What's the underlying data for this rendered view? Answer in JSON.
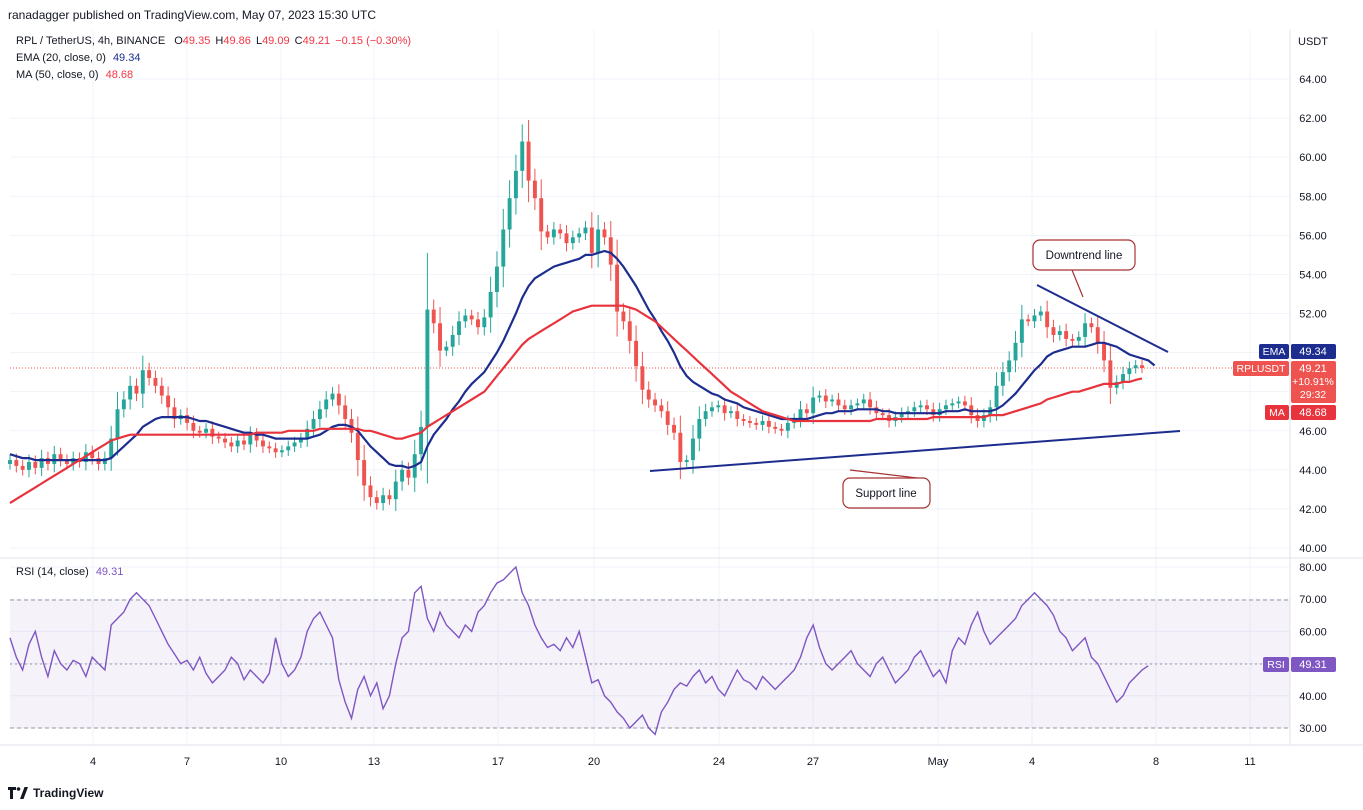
{
  "header": {
    "published": "ranadagger published on TradingView.com, May 07, 2023 15:30 UTC"
  },
  "legend": {
    "symbol": "RPL / TetherUS, 4h, BINANCE",
    "o_label": "O",
    "o": "49.35",
    "h_label": "H",
    "h": "49.86",
    "l_label": "L",
    "l": "49.09",
    "c_label": "C",
    "c": "49.21",
    "change": "−0.15 (−0.30%)",
    "ema_label": "EMA (20, close, 0)",
    "ema_value": "49.34",
    "ma_label": "MA (50, close, 0)",
    "ma_value": "48.68",
    "rsi_label": "RSI (14, close)",
    "rsi_value": "49.31"
  },
  "price_axis": {
    "currency": "USDT",
    "ticks": [
      "64.00",
      "62.00",
      "60.00",
      "58.00",
      "56.00",
      "54.00",
      "52.00",
      "50.00",
      "48.00",
      "46.00",
      "44.00",
      "42.00",
      "40.00"
    ]
  },
  "rsi_axis": {
    "ticks": [
      "80.00",
      "70.00",
      "60.00",
      "50.00",
      "40.00",
      "30.00"
    ]
  },
  "time_axis": {
    "ticks": [
      "4",
      "7",
      "10",
      "13",
      "17",
      "20",
      "24",
      "27",
      "May",
      "4",
      "8",
      "11"
    ]
  },
  "badges": {
    "ema_tag": "EMA",
    "ema_value": "49.34",
    "price_tag": "RPLUSDT",
    "price_value": "49.21",
    "price_change": "+10.91%",
    "countdown": "29:32",
    "ma_tag": "MA",
    "ma_value": "48.68",
    "rsi_tag": "RSI",
    "rsi_value": "49.31"
  },
  "annotations": {
    "downtrend": "Downtrend line",
    "support": "Support line"
  },
  "colors": {
    "up": "#26a69a",
    "down": "#ef5350",
    "ema": "#1c2d8f",
    "ma": "#e8333d",
    "rsi": "#7e57c2",
    "trendline": "#1c2d8f"
  },
  "footer": {
    "brand": "TradingView"
  },
  "chart_data": {
    "type": "candlestick",
    "symbol": "RPL / TetherUS",
    "interval": "4h",
    "ylim": [
      39.5,
      65.5
    ],
    "rsi_ylim": [
      25,
      82
    ],
    "closes": [
      44.5,
      44.2,
      44.0,
      44.4,
      44.1,
      44.6,
      44.3,
      44.8,
      44.5,
      44.3,
      44.6,
      44.4,
      44.9,
      44.6,
      44.3,
      44.6,
      45.6,
      47.1,
      47.6,
      48.3,
      47.9,
      49.1,
      48.7,
      48.3,
      47.8,
      47.2,
      46.6,
      46.8,
      46.4,
      46.0,
      45.9,
      46.1,
      45.7,
      45.6,
      45.4,
      45.2,
      45.5,
      45.3,
      45.8,
      45.5,
      45.2,
      45.1,
      44.9,
      45.0,
      45.2,
      45.4,
      45.6,
      46.1,
      46.6,
      47.1,
      47.6,
      47.9,
      47.3,
      46.6,
      45.9,
      44.5,
      43.2,
      42.6,
      42.3,
      42.7,
      42.5,
      43.4,
      44.0,
      43.6,
      44.8,
      46.2,
      52.2,
      51.5,
      50.1,
      50.3,
      50.9,
      51.6,
      51.9,
      51.7,
      51.3,
      51.8,
      53.1,
      54.4,
      56.3,
      57.9,
      59.3,
      60.8,
      58.8,
      57.9,
      56.2,
      55.9,
      56.3,
      56.1,
      55.6,
      55.9,
      56.1,
      56.4,
      55.1,
      56.3,
      55.9,
      54.5,
      52.1,
      51.6,
      50.6,
      49.3,
      48.1,
      47.6,
      47.3,
      47.0,
      46.3,
      45.9,
      44.4,
      44.5,
      45.6,
      46.6,
      47.0,
      47.2,
      47.3,
      46.9,
      47.0,
      46.6,
      46.5,
      46.4,
      46.3,
      46.5,
      46.2,
      46.1,
      46.0,
      46.4,
      46.6,
      47.1,
      46.9,
      47.7,
      47.8,
      47.5,
      47.6,
      47.3,
      47.1,
      47.3,
      47.4,
      47.6,
      47.2,
      46.9,
      46.8,
      46.5,
      46.7,
      46.9,
      47.0,
      47.2,
      47.3,
      47.1,
      46.8,
      47.1,
      47.3,
      47.4,
      47.5,
      47.3,
      46.8,
      46.5,
      46.8,
      47.2,
      48.3,
      49.0,
      49.6,
      50.5,
      51.7,
      51.6,
      51.9,
      52.1,
      51.3,
      50.9,
      51.1,
      50.7,
      50.6,
      50.8,
      51.5,
      51.3,
      50.5,
      49.6,
      48.2,
      48.5,
      48.9,
      49.2,
      49.35,
      49.21
    ],
    "ema20": [
      44.8,
      44.7,
      44.6,
      44.6,
      44.5,
      44.5,
      44.5,
      44.5,
      44.5,
      44.5,
      44.5,
      44.5,
      44.5,
      44.5,
      44.5,
      44.5,
      44.6,
      44.9,
      45.2,
      45.5,
      45.8,
      46.2,
      46.4,
      46.6,
      46.7,
      46.7,
      46.7,
      46.7,
      46.7,
      46.6,
      46.5,
      46.5,
      46.4,
      46.3,
      46.2,
      46.1,
      46.0,
      45.9,
      45.9,
      45.8,
      45.8,
      45.7,
      45.6,
      45.6,
      45.6,
      45.6,
      45.6,
      45.6,
      45.7,
      45.8,
      46.0,
      46.2,
      46.3,
      46.3,
      46.2,
      46.0,
      45.6,
      45.2,
      44.9,
      44.6,
      44.3,
      44.2,
      44.2,
      44.1,
      44.2,
      44.4,
      45.2,
      45.8,
      46.2,
      46.6,
      47.1,
      47.5,
      48.0,
      48.4,
      48.7,
      49.0,
      49.5,
      50.0,
      50.6,
      51.3,
      52.0,
      52.8,
      53.4,
      53.8,
      54.0,
      54.2,
      54.4,
      54.5,
      54.6,
      54.7,
      54.8,
      55.0,
      55.0,
      55.1,
      55.2,
      55.1,
      54.8,
      54.4,
      53.9,
      53.4,
      52.8,
      52.2,
      51.7,
      51.1,
      50.6,
      50.0,
      49.3,
      48.8,
      48.5,
      48.3,
      48.1,
      47.9,
      47.8,
      47.6,
      47.5,
      47.4,
      47.2,
      47.1,
      47.0,
      46.9,
      46.8,
      46.7,
      46.6,
      46.6,
      46.6,
      46.6,
      46.6,
      46.7,
      46.8,
      46.9,
      46.9,
      47.0,
      47.0,
      47.0,
      47.1,
      47.1,
      47.1,
      47.1,
      47.0,
      47.0,
      46.9,
      46.9,
      46.9,
      46.9,
      46.9,
      46.9,
      46.9,
      46.9,
      47.0,
      47.0,
      47.0,
      47.1,
      47.0,
      47.0,
      47.0,
      47.0,
      47.1,
      47.3,
      47.6,
      47.9,
      48.3,
      48.7,
      49.1,
      49.4,
      49.8,
      50.0,
      50.1,
      50.2,
      50.3,
      50.3,
      50.3,
      50.4,
      50.5,
      50.5,
      50.4,
      50.3,
      50.1,
      49.9,
      49.8,
      49.7,
      49.6,
      49.34
    ],
    "ma50": [
      42.3,
      42.5,
      42.7,
      42.9,
      43.1,
      43.3,
      43.5,
      43.7,
      43.9,
      44.1,
      44.3,
      44.5,
      44.7,
      44.9,
      45.1,
      45.3,
      45.5,
      45.6,
      45.7,
      45.8,
      45.8,
      45.8,
      45.8,
      45.8,
      45.8,
      45.8,
      45.8,
      45.8,
      45.8,
      45.8,
      45.8,
      45.8,
      45.8,
      45.8,
      45.8,
      45.8,
      45.8,
      45.8,
      45.8,
      45.9,
      45.9,
      45.9,
      45.9,
      45.9,
      46.0,
      46.0,
      46.0,
      46.0,
      46.0,
      46.1,
      46.1,
      46.1,
      46.1,
      46.1,
      46.1,
      46.1,
      46.0,
      46.0,
      45.9,
      45.8,
      45.7,
      45.6,
      45.6,
      45.7,
      45.8,
      45.9,
      46.2,
      46.4,
      46.6,
      46.8,
      47.0,
      47.2,
      47.4,
      47.6,
      47.8,
      48.0,
      48.4,
      48.8,
      49.2,
      49.6,
      50.0,
      50.4,
      50.7,
      50.9,
      51.1,
      51.3,
      51.5,
      51.7,
      51.9,
      52.1,
      52.2,
      52.3,
      52.4,
      52.4,
      52.4,
      52.4,
      52.4,
      52.4,
      52.3,
      52.2,
      52.0,
      51.8,
      51.6,
      51.3,
      51.0,
      50.7,
      50.4,
      50.1,
      49.8,
      49.5,
      49.2,
      48.9,
      48.6,
      48.3,
      48.0,
      47.8,
      47.6,
      47.4,
      47.2,
      47.0,
      46.9,
      46.8,
      46.7,
      46.6,
      46.5,
      46.5,
      46.5,
      46.5,
      46.5,
      46.5,
      46.5,
      46.5,
      46.5,
      46.5,
      46.5,
      46.5,
      46.5,
      46.6,
      46.6,
      46.6,
      46.6,
      46.6,
      46.6,
      46.6,
      46.6,
      46.6,
      46.7,
      46.7,
      46.7,
      46.7,
      46.7,
      46.7,
      46.7,
      46.7,
      46.7,
      46.8,
      46.8,
      46.8,
      46.9,
      47.0,
      47.1,
      47.2,
      47.3,
      47.4,
      47.6,
      47.7,
      47.8,
      47.9,
      48.0,
      48.0,
      48.1,
      48.2,
      48.3,
      48.4,
      48.4,
      48.4,
      48.5,
      48.5,
      48.6,
      48.68
    ],
    "rsi": [
      58,
      52,
      48,
      56,
      60,
      52,
      46,
      54,
      50,
      48,
      51,
      50,
      46,
      52,
      50,
      48,
      62,
      64,
      66,
      70,
      72,
      70,
      68,
      64,
      60,
      56,
      53,
      50,
      51,
      48,
      52,
      47,
      44,
      46,
      48,
      52,
      50,
      45,
      48,
      46,
      44,
      47,
      58,
      50,
      46,
      48,
      52,
      60,
      64,
      66,
      62,
      58,
      45,
      38,
      33,
      42,
      46,
      40,
      44,
      36,
      40,
      50,
      58,
      60,
      72,
      74,
      64,
      60,
      66,
      62,
      60,
      58,
      62,
      60,
      66,
      68,
      72,
      75,
      76,
      78,
      80,
      72,
      68,
      62,
      58,
      55,
      56,
      54,
      58,
      55,
      60,
      52,
      44,
      45,
      40,
      38,
      35,
      33,
      30,
      32,
      34,
      30,
      28,
      35,
      38,
      42,
      44,
      43,
      46,
      48,
      44,
      46,
      42,
      40,
      44,
      48,
      45,
      44,
      42,
      46,
      44,
      42,
      44,
      46,
      48,
      52,
      58,
      62,
      55,
      50,
      48,
      50,
      52,
      54,
      50,
      48,
      46,
      50,
      52,
      48,
      44,
      46,
      48,
      52,
      54,
      50,
      46,
      48,
      44,
      54,
      58,
      56,
      62,
      66,
      60,
      56,
      58,
      60,
      62,
      64,
      68,
      70,
      72,
      70,
      68,
      65,
      60,
      58,
      54,
      56,
      58,
      52,
      50,
      46,
      42,
      38,
      40,
      44,
      46,
      48,
      49.31
    ]
  }
}
